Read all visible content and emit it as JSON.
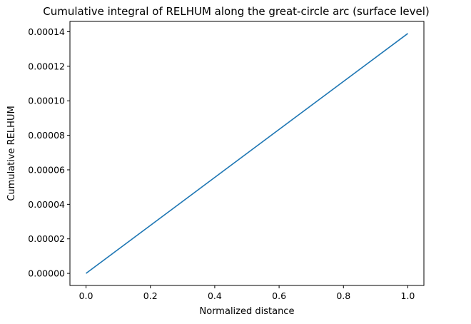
{
  "chart_data": {
    "type": "line",
    "title": "Cumulative integral of RELHUM along the great-circle arc (surface level)",
    "x_label": "Normalized distance",
    "y_label": "Cumulative RELHUM",
    "x": [
      0,
      1
    ],
    "series": [
      {
        "name": "RELHUM",
        "color": "#1f77b4",
        "values": [
          0,
          0.000139
        ]
      }
    ],
    "xlim": [
      -0.05,
      1.05
    ],
    "ylim": [
      -7e-06,
      0.000146
    ],
    "xticks": [
      {
        "value": 0,
        "label": "0.0"
      },
      {
        "value": 0.2,
        "label": "0.2"
      },
      {
        "value": 0.4,
        "label": "0.4"
      },
      {
        "value": 0.6,
        "label": "0.6"
      },
      {
        "value": 0.8,
        "label": "0.8"
      },
      {
        "value": 1,
        "label": "1.0"
      }
    ],
    "yticks": [
      {
        "value": 0,
        "label": "0.00000"
      },
      {
        "value": 2e-05,
        "label": "0.00002"
      },
      {
        "value": 4e-05,
        "label": "0.00004"
      },
      {
        "value": 6e-05,
        "label": "0.00006"
      },
      {
        "value": 8e-05,
        "label": "0.00008"
      },
      {
        "value": 0.0001,
        "label": "0.00010"
      },
      {
        "value": 0.00012,
        "label": "0.00012"
      },
      {
        "value": 0.00014,
        "label": "0.00014"
      }
    ]
  }
}
